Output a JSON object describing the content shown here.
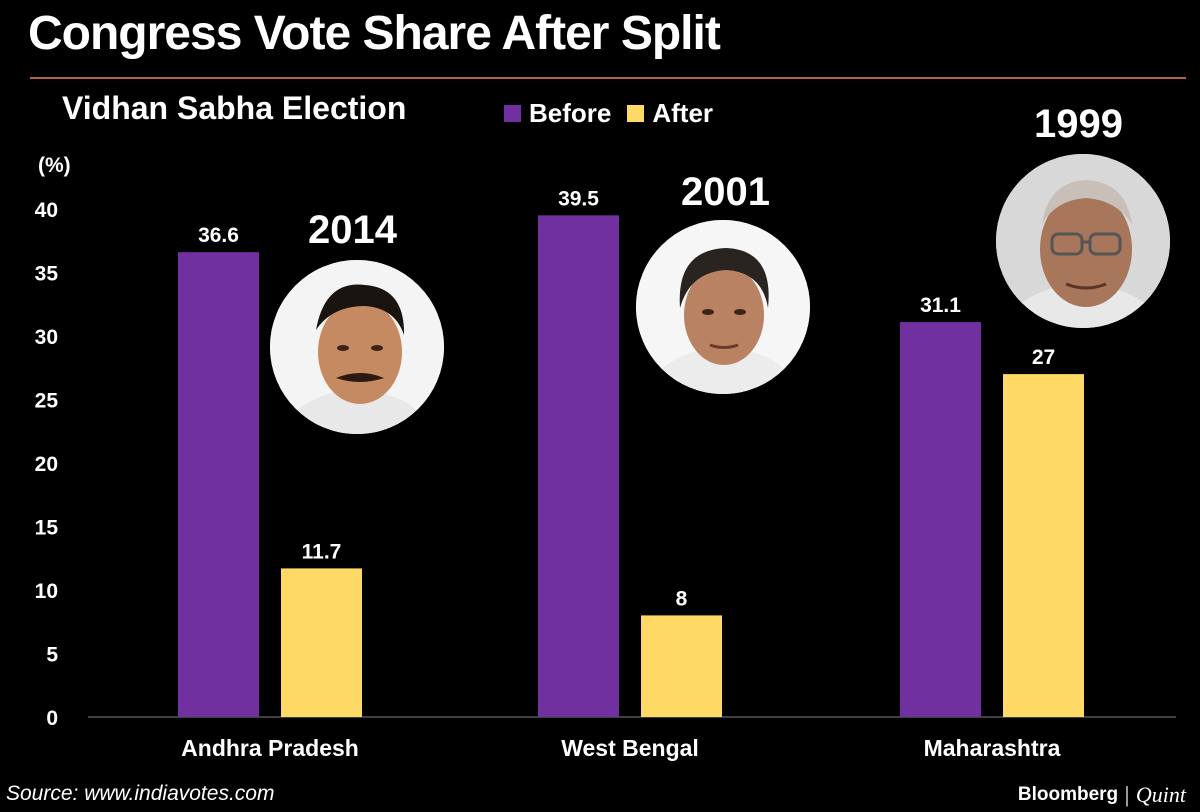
{
  "header": {
    "title": "Congress Vote Share After Split",
    "subtitle": "Vidhan Sabha Election"
  },
  "legend": [
    {
      "label": "Before",
      "color": "#7030a0"
    },
    {
      "label": "After",
      "color": "#ffd966"
    }
  ],
  "annotations": {
    "years": [
      "2014",
      "2001",
      "1999"
    ],
    "portrait_icons": [
      "person-portrait-icon",
      "person-portrait-icon",
      "person-portrait-icon"
    ]
  },
  "footer": {
    "source": "Source: www.indiavotes.com",
    "brand": "Bloomberg",
    "brand_secondary": "Quint"
  },
  "chart_data": {
    "type": "bar",
    "title": "Congress Vote Share After Split",
    "subtitle": "Vidhan Sabha Election",
    "ylabel": "(%)",
    "categories": [
      "Andhra Pradesh",
      "West Bengal",
      "Maharashtra"
    ],
    "series": [
      {
        "name": "Before",
        "values": [
          36.6,
          39.5,
          31.1
        ],
        "labels": [
          "36.6",
          "39.5",
          "31.1"
        ],
        "color": "#7030a0"
      },
      {
        "name": "After",
        "values": [
          11.7,
          8,
          27
        ],
        "labels": [
          "11.7",
          "8",
          "27"
        ],
        "color": "#ffd966"
      }
    ],
    "ylim": [
      0,
      40
    ],
    "yticks": [
      "0",
      "5",
      "10",
      "15",
      "20",
      "25",
      "30",
      "35",
      "40"
    ],
    "grid": false,
    "legend_position": "top"
  }
}
